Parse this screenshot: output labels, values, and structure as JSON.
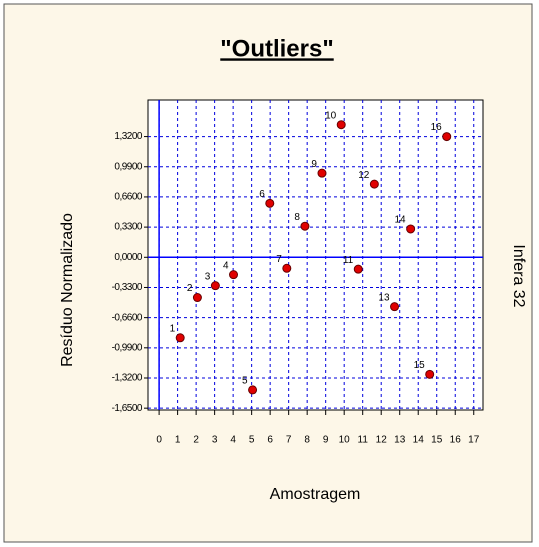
{
  "chart_data": {
    "type": "scatter",
    "title": "\"Outliers\"",
    "x_label": "Amostragem",
    "y_label": "Resíduo Normalizado",
    "y2_label": "Infera 32",
    "x": [
      1.14,
      2.07,
      3.04,
      4.02,
      5.05,
      5.98,
      6.9,
      7.88,
      8.8,
      9.84,
      10.76,
      11.63,
      12.72,
      13.59,
      14.62,
      15.54
    ],
    "values": [
      -0.88,
      -0.44,
      -0.31,
      -0.19,
      -1.45,
      0.59,
      -0.12,
      0.34,
      0.92,
      1.45,
      -0.13,
      0.8,
      -0.54,
      0.31,
      -1.28,
      1.32
    ],
    "point_labels": [
      "1",
      "2",
      "3",
      "4",
      "5",
      "6",
      "7",
      "8",
      "9",
      "10",
      "11",
      "12",
      "13",
      "14",
      "15",
      "16"
    ],
    "color": "#e00000",
    "xlim": [
      -0.6,
      17.5
    ],
    "ylim": [
      -1.67,
      1.72
    ],
    "xticks": [
      0,
      1,
      2,
      3,
      4,
      5,
      6,
      7,
      8,
      9,
      10,
      11,
      12,
      13,
      14,
      15,
      16,
      17
    ],
    "yticks": [
      {
        "value": 1.32,
        "label": "1,3200"
      },
      {
        "value": 0.99,
        "label": "0,9900"
      },
      {
        "value": 0.66,
        "label": "0,6600"
      },
      {
        "value": 0.33,
        "label": "0,3300"
      },
      {
        "value": 0,
        "label": "0,0000"
      },
      {
        "value": -0.33,
        "label": "-0,3300"
      },
      {
        "value": -0.66,
        "label": "-0,6600"
      },
      {
        "value": -0.99,
        "label": "-0,9900"
      },
      {
        "value": -1.32,
        "label": "-1,3200"
      },
      {
        "value": -1.65,
        "label": "-1,6500"
      }
    ],
    "grid": true
  }
}
